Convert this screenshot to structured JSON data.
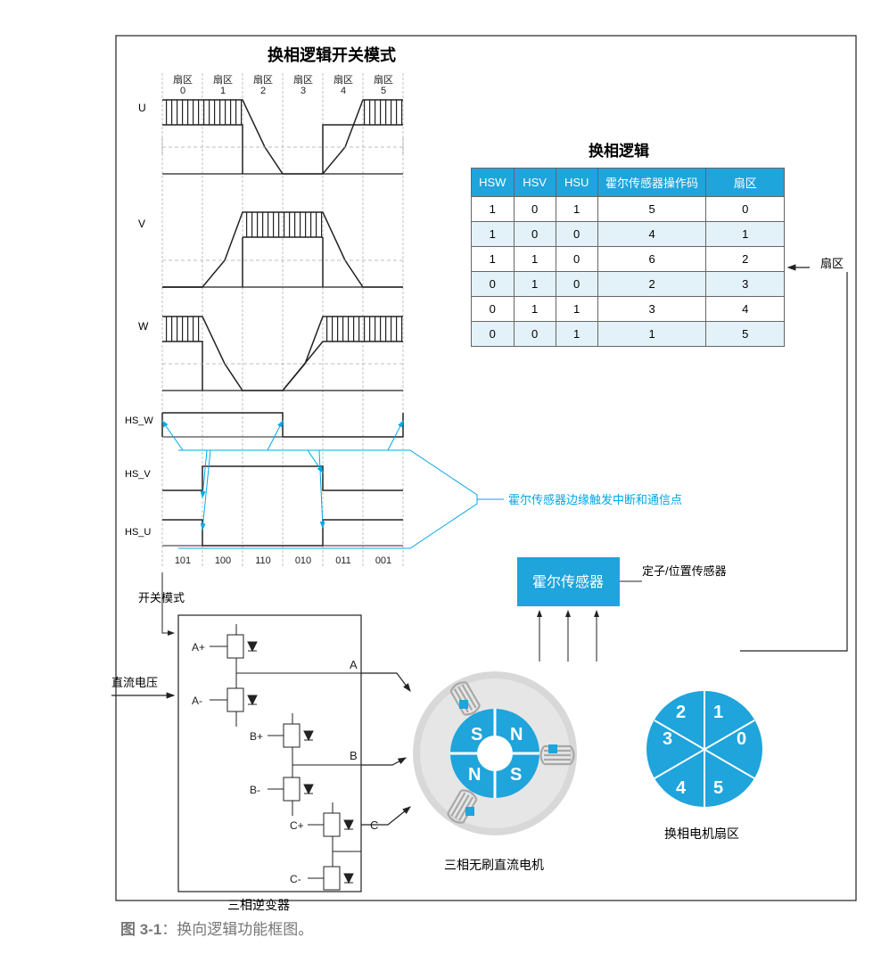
{
  "titles": {
    "switching_pattern": "换相逻辑开关模式",
    "commutation_logic": "换相逻辑",
    "hall_sensor": "霍尔传感器",
    "stator_pos_sensor": "定子/位置传感器",
    "motor_sector": "换相电机扇区",
    "bldc_motor": "三相无刷直流电机",
    "inverter": "三相逆变器",
    "switch_mode": "开关模式",
    "dc_voltage": "直流电压",
    "sector_side": "扇区",
    "hall_interrupt": "霍尔传感器边缘触发中断和通信点",
    "caption_num": "图 3-1",
    "caption_text": "：换向逻辑功能框图。"
  },
  "sectors": {
    "label": "扇区",
    "values": [
      "0",
      "1",
      "2",
      "3",
      "4",
      "5"
    ]
  },
  "phase_labels": {
    "U": "U",
    "V": "V",
    "W": "W",
    "HS_W": "HS_W",
    "HS_V": "HS_V",
    "HS_U": "HS_U"
  },
  "binary_codes": [
    "101",
    "100",
    "110",
    "010",
    "011",
    "001"
  ],
  "table": {
    "headers": [
      "HSW",
      "HSV",
      "HSU",
      "霍尔传感器操作码",
      "扇区"
    ],
    "rows": [
      [
        "1",
        "0",
        "1",
        "5",
        "0"
      ],
      [
        "1",
        "0",
        "0",
        "4",
        "1"
      ],
      [
        "1",
        "1",
        "0",
        "6",
        "2"
      ],
      [
        "0",
        "1",
        "0",
        "2",
        "3"
      ],
      [
        "0",
        "1",
        "1",
        "3",
        "4"
      ],
      [
        "0",
        "0",
        "1",
        "1",
        "5"
      ]
    ]
  },
  "inverter_labels": {
    "Ap": "A+",
    "Am": "A-",
    "Bp": "B+",
    "Bm": "B-",
    "Cp": "C+",
    "Cm": "C-",
    "A": "A",
    "B": "B",
    "C": "C"
  },
  "motor_poles": [
    "S",
    "N",
    "N",
    "S"
  ],
  "sector_wheel": [
    "0",
    "1",
    "2",
    "3",
    "4",
    "5"
  ],
  "colors": {
    "blue": "#1fa4dc",
    "lightblue": "#00a8e8",
    "black": "#222",
    "gray": "#888",
    "lightgray": "#ccc",
    "motorgray": "#d4d4d4",
    "coilgray": "#a8a8a8"
  }
}
